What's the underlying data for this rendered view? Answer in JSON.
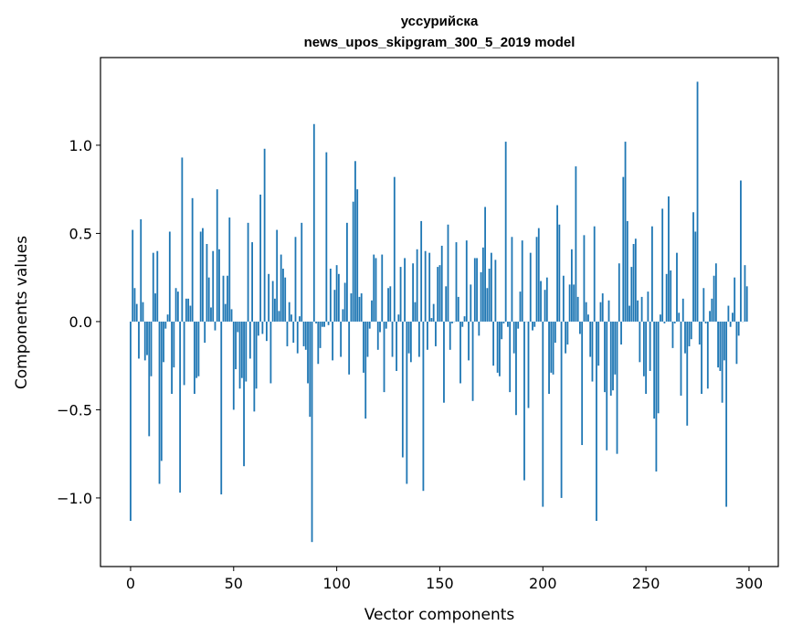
{
  "chart_data": {
    "type": "bar",
    "title": "уссурийска",
    "subtitle": "news_upos_skipgram_300_5_2019 model",
    "xlabel": "Vector components",
    "ylabel": "Components values",
    "xlim": [
      -14.6,
      314.2
    ],
    "ylim": [
      -1.389,
      1.497
    ],
    "xticks": [
      {
        "value": 0,
        "label": "0"
      },
      {
        "value": 50,
        "label": "50"
      },
      {
        "value": 100,
        "label": "100"
      },
      {
        "value": 150,
        "label": "150"
      },
      {
        "value": 200,
        "label": "200"
      },
      {
        "value": 250,
        "label": "250"
      },
      {
        "value": 300,
        "label": "300"
      }
    ],
    "yticks": [
      {
        "value": -1.0,
        "label": "−1.0"
      },
      {
        "value": -0.5,
        "label": "−0.5"
      },
      {
        "value": 0.0,
        "label": "0.0"
      },
      {
        "value": 0.5,
        "label": "0.5"
      },
      {
        "value": 1.0,
        "label": "1.0"
      }
    ],
    "grid": false,
    "bar_color": "#1f77b4",
    "values": [
      -1.13,
      0.52,
      0.19,
      0.1,
      -0.21,
      0.58,
      0.11,
      -0.22,
      -0.19,
      -0.65,
      -0.31,
      0.39,
      0.16,
      0.4,
      -0.92,
      -0.79,
      -0.23,
      -0.04,
      0.04,
      0.51,
      -0.41,
      -0.26,
      0.19,
      0.17,
      -0.97,
      0.93,
      -0.36,
      0.13,
      0.13,
      0.09,
      0.7,
      -0.41,
      -0.32,
      -0.31,
      0.51,
      0.53,
      -0.12,
      0.44,
      0.25,
      0.08,
      0.4,
      -0.05,
      0.75,
      0.41,
      -0.98,
      0.26,
      0.1,
      0.26,
      0.59,
      0.07,
      -0.5,
      -0.27,
      -0.06,
      -0.38,
      -0.32,
      -0.82,
      -0.34,
      0.56,
      -0.21,
      0.45,
      -0.51,
      -0.38,
      -0.08,
      0.72,
      -0.07,
      0.98,
      -0.11,
      0.27,
      -0.35,
      0.23,
      0.13,
      0.52,
      0.06,
      0.38,
      0.3,
      0.25,
      -0.14,
      0.11,
      0.04,
      -0.12,
      0.48,
      -0.18,
      0.03,
      0.56,
      -0.14,
      -0.16,
      -0.35,
      -0.54,
      -1.25,
      1.12,
      -0.01,
      -0.24,
      -0.15,
      -0.03,
      -0.03,
      0.96,
      -0.02,
      0.3,
      -0.22,
      0.18,
      0.32,
      0.27,
      -0.2,
      0.07,
      0.22,
      0.56,
      -0.3,
      0.16,
      0.68,
      0.91,
      0.75,
      0.14,
      0.16,
      -0.29,
      -0.55,
      -0.2,
      -0.04,
      0.12,
      0.38,
      0.36,
      -0.16,
      -0.06,
      0.38,
      -0.4,
      -0.04,
      0.19,
      0.2,
      -0.2,
      0.82,
      -0.28,
      0.04,
      0.31,
      -0.77,
      0.36,
      -0.92,
      -0.18,
      -0.23,
      0.33,
      0.11,
      0.41,
      -0.2,
      0.57,
      -0.96,
      0.4,
      -0.16,
      0.39,
      0.02,
      0.1,
      -0.14,
      0.31,
      0.32,
      0.43,
      -0.46,
      0.2,
      0.55,
      -0.16,
      -0.01,
      0.0,
      0.45,
      0.14,
      -0.35,
      -0.03,
      0.03,
      0.46,
      -0.22,
      0.21,
      -0.45,
      0.36,
      0.36,
      -0.08,
      0.28,
      0.42,
      0.65,
      0.19,
      0.3,
      0.39,
      -0.25,
      0.35,
      -0.29,
      -0.31,
      -0.1,
      -0.01,
      1.02,
      -0.03,
      -0.4,
      0.48,
      -0.18,
      -0.53,
      -0.04,
      0.17,
      0.46,
      -0.9,
      0.0,
      -0.49,
      0.39,
      -0.05,
      -0.03,
      0.48,
      0.53,
      0.23,
      -1.05,
      0.18,
      0.25,
      -0.41,
      -0.29,
      -0.3,
      -0.12,
      0.66,
      0.55,
      -1.0,
      0.26,
      -0.18,
      -0.13,
      0.21,
      0.41,
      0.21,
      0.88,
      0.14,
      -0.07,
      -0.7,
      0.49,
      0.11,
      0.04,
      -0.2,
      -0.34,
      0.54,
      -1.13,
      -0.25,
      0.11,
      0.16,
      -0.4,
      -0.73,
      0.12,
      -0.42,
      -0.39,
      -0.3,
      -0.75,
      0.33,
      -0.13,
      0.82,
      1.02,
      0.57,
      0.09,
      0.31,
      0.44,
      0.47,
      0.12,
      -0.23,
      0.14,
      -0.31,
      -0.41,
      0.17,
      -0.28,
      0.54,
      -0.55,
      -0.85,
      -0.52,
      0.04,
      0.64,
      -0.01,
      0.27,
      0.71,
      0.29,
      -0.15,
      -0.01,
      0.39,
      0.05,
      -0.42,
      0.13,
      -0.18,
      -0.59,
      -0.14,
      -0.1,
      0.62,
      0.51,
      1.36,
      -0.13,
      -0.41,
      0.19,
      -0.01,
      -0.38,
      0.06,
      0.13,
      0.26,
      0.33,
      -0.26,
      -0.28,
      -0.46,
      -0.22,
      -1.05,
      0.09,
      -0.03,
      0.05,
      0.25,
      -0.24,
      -0.08,
      0.8,
      0.0,
      0.32,
      0.2
    ]
  }
}
